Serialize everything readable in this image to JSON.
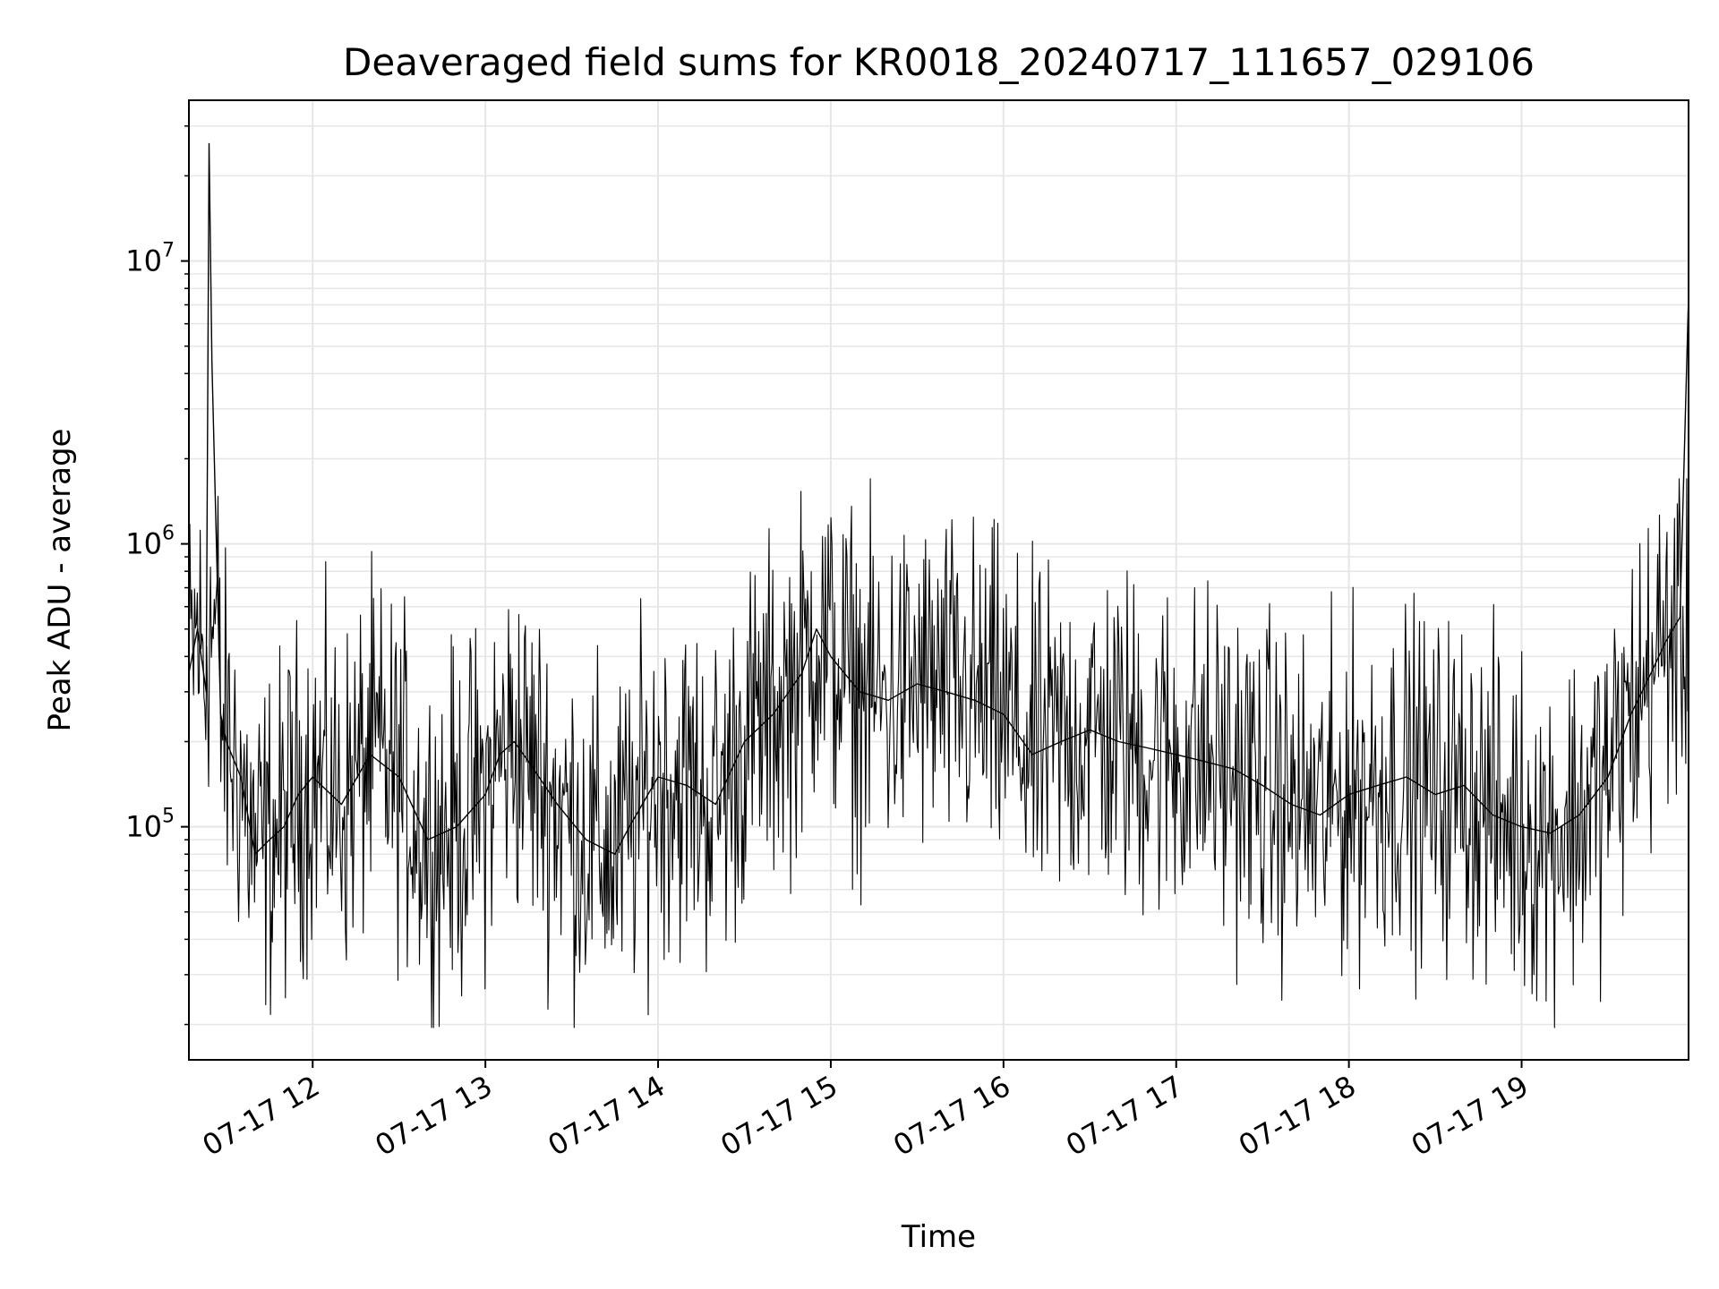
{
  "chart_data": {
    "type": "line",
    "title": "Deaveraged field sums for KR0018_20240717_111657_029106",
    "xlabel": "Time",
    "ylabel": "Peak ADU - average",
    "y_scale": "log",
    "ylim": [
      15000,
      37000000
    ],
    "xlim": [
      "2024-07-17 11:17",
      "2024-07-17 19:58"
    ],
    "grid": true,
    "line_color": "#000000",
    "grid_color": "#e6e6e6",
    "x_ticks": [
      {
        "t": "2024-07-17 12:00",
        "label": "07-17 12"
      },
      {
        "t": "2024-07-17 13:00",
        "label": "07-17 13"
      },
      {
        "t": "2024-07-17 14:00",
        "label": "07-17 14"
      },
      {
        "t": "2024-07-17 15:00",
        "label": "07-17 15"
      },
      {
        "t": "2024-07-17 16:00",
        "label": "07-17 16"
      },
      {
        "t": "2024-07-17 17:00",
        "label": "07-17 17"
      },
      {
        "t": "2024-07-17 18:00",
        "label": "07-17 18"
      },
      {
        "t": "2024-07-17 19:00",
        "label": "07-17 19"
      }
    ],
    "y_ticks": [
      {
        "value": 100000,
        "base": "10",
        "exp": "5"
      },
      {
        "value": 1000000,
        "base": "10",
        "exp": "6"
      },
      {
        "value": 10000000,
        "base": "10",
        "exp": "7"
      }
    ],
    "series": [
      {
        "x": [
          "2024-07-17 11:17",
          "2024-07-17 11:20",
          "2024-07-17 11:23",
          "2024-07-17 11:24",
          "2024-07-17 11:25",
          "2024-07-17 11:28",
          "2024-07-17 11:30",
          "2024-07-17 11:35",
          "2024-07-17 11:40",
          "2024-07-17 11:45",
          "2024-07-17 11:50",
          "2024-07-17 11:55",
          "2024-07-17 12:00",
          "2024-07-17 12:10",
          "2024-07-17 12:20",
          "2024-07-17 12:30",
          "2024-07-17 12:40",
          "2024-07-17 12:50",
          "2024-07-17 13:00",
          "2024-07-17 13:05",
          "2024-07-17 13:10",
          "2024-07-17 13:15",
          "2024-07-17 13:25",
          "2024-07-17 13:35",
          "2024-07-17 13:45",
          "2024-07-17 13:50",
          "2024-07-17 14:00",
          "2024-07-17 14:10",
          "2024-07-17 14:20",
          "2024-07-17 14:30",
          "2024-07-17 14:40",
          "2024-07-17 14:50",
          "2024-07-17 14:55",
          "2024-07-17 15:00",
          "2024-07-17 15:10",
          "2024-07-17 15:20",
          "2024-07-17 15:30",
          "2024-07-17 15:40",
          "2024-07-17 15:50",
          "2024-07-17 16:00",
          "2024-07-17 16:10",
          "2024-07-17 16:20",
          "2024-07-17 16:30",
          "2024-07-17 16:40",
          "2024-07-17 16:50",
          "2024-07-17 17:00",
          "2024-07-17 17:10",
          "2024-07-17 17:20",
          "2024-07-17 17:30",
          "2024-07-17 17:40",
          "2024-07-17 17:50",
          "2024-07-17 18:00",
          "2024-07-17 18:10",
          "2024-07-17 18:20",
          "2024-07-17 18:30",
          "2024-07-17 18:40",
          "2024-07-17 18:50",
          "2024-07-17 19:00",
          "2024-07-17 19:10",
          "2024-07-17 19:20",
          "2024-07-17 19:30",
          "2024-07-17 19:38",
          "2024-07-17 19:45",
          "2024-07-17 19:50",
          "2024-07-17 19:55",
          "2024-07-17 19:58"
        ],
        "y": [
          350000,
          500000,
          300000,
          26000000,
          4400000,
          250000,
          200000,
          150000,
          80000,
          90000,
          100000,
          130000,
          150000,
          120000,
          180000,
          150000,
          90000,
          100000,
          130000,
          180000,
          200000,
          170000,
          120000,
          90000,
          80000,
          100000,
          150000,
          140000,
          120000,
          200000,
          250000,
          350000,
          500000,
          400000,
          300000,
          280000,
          320000,
          300000,
          280000,
          250000,
          180000,
          200000,
          220000,
          200000,
          190000,
          180000,
          170000,
          160000,
          140000,
          120000,
          110000,
          130000,
          140000,
          150000,
          130000,
          140000,
          110000,
          100000,
          95000,
          110000,
          150000,
          250000,
          350000,
          450000,
          550000,
          7600000
        ]
      }
    ]
  }
}
